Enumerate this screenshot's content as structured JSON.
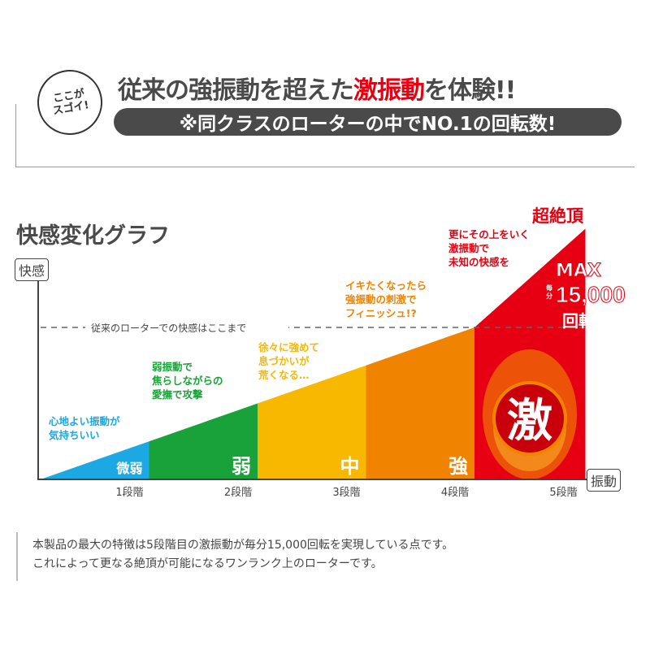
{
  "header": {
    "badge": "ここが\nスゴイ!",
    "title_part1": "従来の強振動を超えた",
    "title_highlight": "激振動",
    "title_part2": "を体験!!",
    "subtitle": "※同クラスのローターの中でNO.1の回転数!"
  },
  "chart_data": {
    "type": "area",
    "title": "快感変化グラフ",
    "ylabel": "快感",
    "xlabel": "振動",
    "categories": [
      "1段階",
      "2段階",
      "3段階",
      "4段階",
      "5段階"
    ],
    "level_labels": [
      "微弱",
      "弱",
      "中",
      "強",
      "激"
    ],
    "values": [
      1,
      2,
      3,
      4,
      6.6
    ],
    "reference_line": {
      "value": 4,
      "label": "従来のローターでの快感はここまで",
      "style": "dashed"
    },
    "colors": [
      "#1ca8e2",
      "#1aa23a",
      "#f8b800",
      "#f08300",
      "#e60012"
    ],
    "annotations": [
      {
        "text": "心地よい振動が\n気持ちいい",
        "color": "#1ca8e2"
      },
      {
        "text": "弱振動で\n焦らしながらの\n愛撫で攻撃",
        "color": "#1aa23a"
      },
      {
        "text": "徐々に強めて\n息づかいが\n荒くなる…",
        "color": "#f8b800"
      },
      {
        "text": "イキたくなったら\n強振動の刺激で\nフィニッシュ!?",
        "color": "#f08300"
      },
      {
        "text": "更にその上をいく\n激振動で\n未知の快感を",
        "color": "#e60012"
      }
    ],
    "peak_label": "超絶頂",
    "max_label": "MAX",
    "max_unit": "毎分",
    "max_value": "15,000",
    "max_suffix": "回転"
  },
  "footer": {
    "line1": "本製品の最大の特徴は5段階目の激振動が毎分15,000回転を実現している点です。",
    "line2": "これによって更なる絶頂が可能になるワンランク上のローターです。"
  }
}
